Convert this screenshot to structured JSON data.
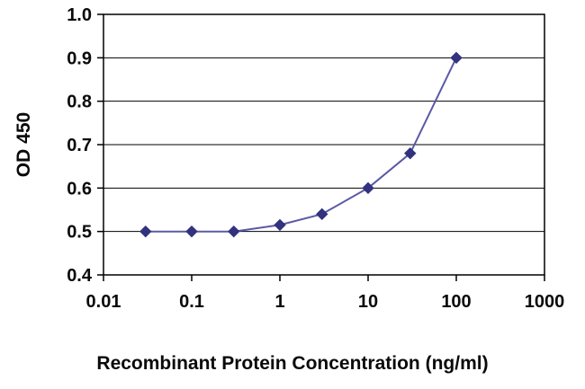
{
  "chart_data": {
    "type": "line",
    "title": "",
    "xlabel": "Recombinant Protein Concentration (ng/ml)",
    "ylabel": "OD 450",
    "x_scale": "log",
    "x": [
      0.03,
      0.1,
      0.3,
      1,
      3,
      10,
      30,
      100
    ],
    "series": [
      {
        "name": "OD 450",
        "values": [
          0.5,
          0.5,
          0.5,
          0.515,
          0.54,
          0.6,
          0.68,
          0.9
        ]
      }
    ],
    "xlim": [
      0.01,
      1000
    ],
    "ylim": [
      0.4,
      1.0
    ],
    "x_ticks": [
      0.01,
      0.1,
      1,
      10,
      100,
      1000
    ],
    "x_tick_labels": [
      "0.01",
      "0.1",
      "1",
      "10",
      "100",
      "1000"
    ],
    "y_ticks": [
      0.4,
      0.5,
      0.6,
      0.7,
      0.8,
      0.9,
      1.0
    ],
    "y_tick_labels": [
      "0.4",
      "0.5",
      "0.6",
      "0.7",
      "0.8",
      "0.9",
      "1.0"
    ],
    "grid": "horizontal",
    "legend": "none",
    "marker": "diamond",
    "colors": {
      "line": "#5a5aa5",
      "marker": "#32327e",
      "grid": "#000000",
      "border": "#000000",
      "text": "#0a0a0a",
      "background": "#ffffff"
    }
  }
}
